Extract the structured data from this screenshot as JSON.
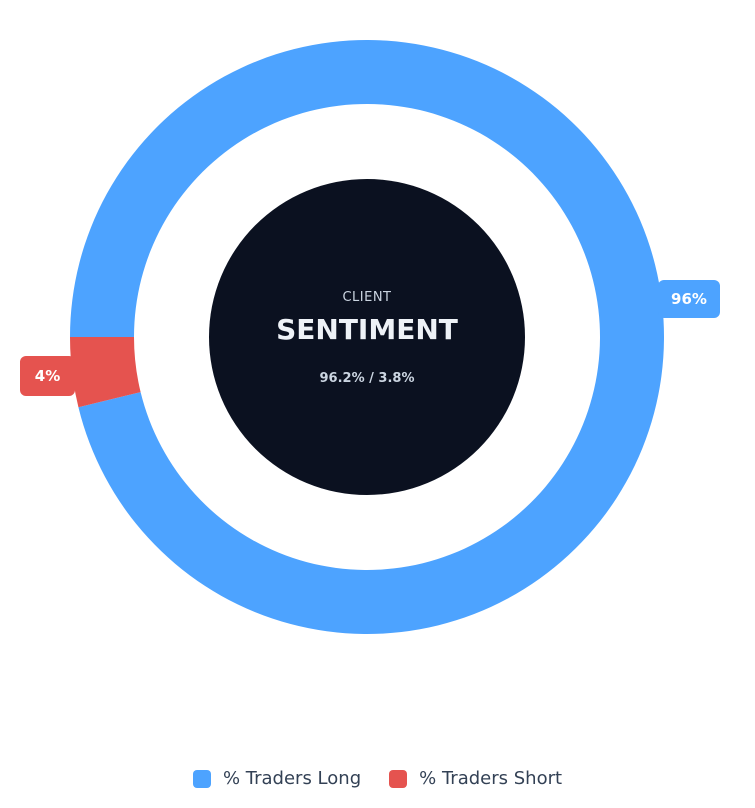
{
  "chart_data": {
    "type": "pie",
    "variant": "doughnut",
    "categories": [
      "% Traders Long",
      "% Traders Short"
    ],
    "values": [
      96.2,
      3.8
    ],
    "data_labels": [
      "96%",
      "4%"
    ],
    "colors": [
      "#4da3ff",
      "#e5534f"
    ],
    "legend_position": "bottom",
    "center": {
      "subtitle": "CLIENT",
      "title": "SENTIMENT",
      "value_text": "96.2% / 3.8%",
      "background": "#0b1120"
    }
  }
}
